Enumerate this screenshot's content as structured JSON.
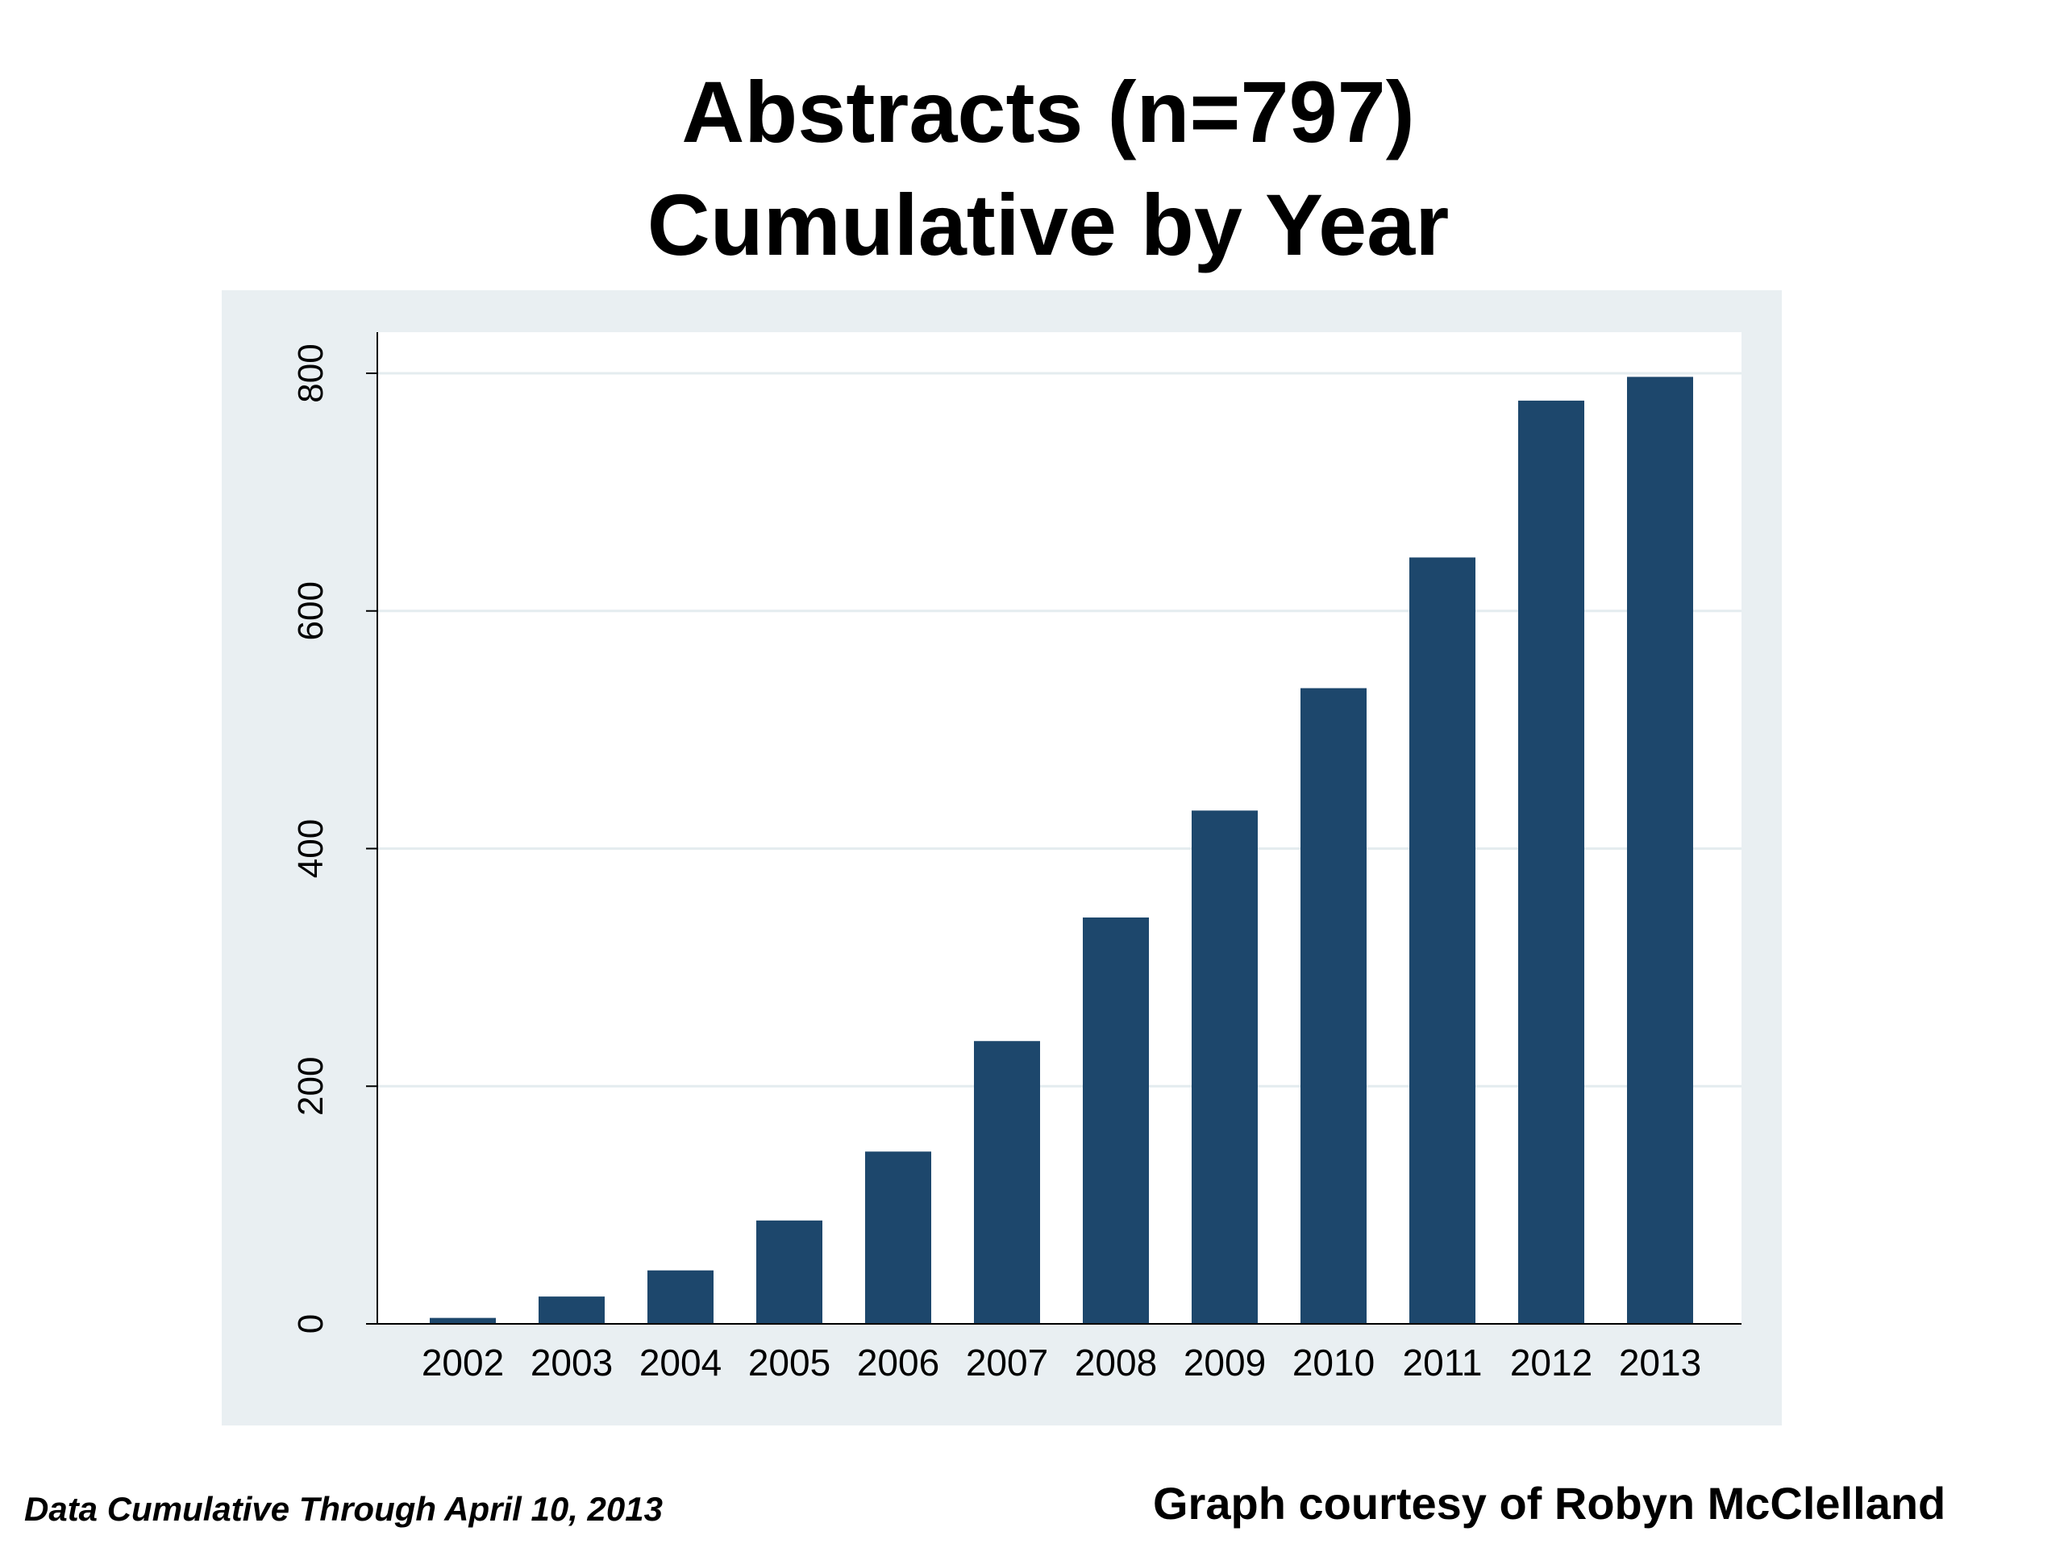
{
  "title": {
    "line1": "Abstracts (n=797)",
    "line2": "Cumulative by Year"
  },
  "footer": {
    "left_note": "Data Cumulative Through April 10, 2013",
    "right_credit": "Graph courtesy of Robyn McClelland"
  },
  "colors": {
    "bar": "#1d476c",
    "outer_background": "#e9eff2",
    "plot_background": "#ffffff",
    "gridline": "#e4ecef"
  },
  "chart_data": {
    "type": "bar",
    "title": "Abstracts (n=797) Cumulative by Year",
    "xlabel": "",
    "ylabel": "",
    "categories": [
      "2002",
      "2003",
      "2004",
      "2005",
      "2006",
      "2007",
      "2008",
      "2009",
      "2010",
      "2011",
      "2012",
      "2013"
    ],
    "values": [
      5,
      23,
      45,
      87,
      145,
      238,
      342,
      432,
      535,
      645,
      777,
      797
    ],
    "ylim": [
      0,
      800
    ],
    "yticks": [
      "0",
      "200",
      "400",
      "600",
      "800"
    ],
    "grid": true,
    "legend": "none"
  }
}
